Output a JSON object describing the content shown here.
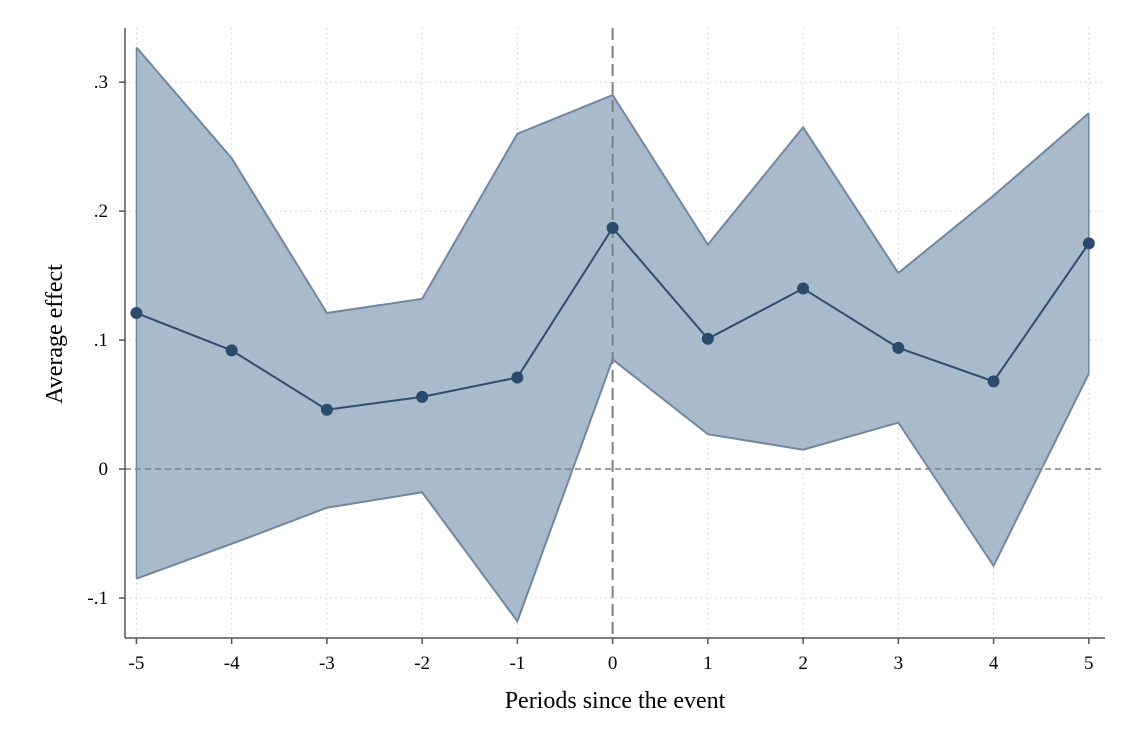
{
  "chart_data": {
    "type": "line",
    "title": "",
    "xlabel": "Periods since the event",
    "ylabel": "Average effect",
    "x": [
      -5,
      -4,
      -3,
      -2,
      -1,
      0,
      1,
      2,
      3,
      4,
      5
    ],
    "x_tick_labels": [
      "-5",
      "-4",
      "-3",
      "-2",
      "-1",
      "0",
      "1",
      "2",
      "3",
      "4",
      "5"
    ],
    "y_ticks": [
      -0.1,
      0,
      0.1,
      0.2,
      0.3
    ],
    "y_tick_labels": [
      "-.1",
      "0",
      ".1",
      ".2",
      ".3"
    ],
    "xlim": [
      -5.12,
      5.17
    ],
    "ylim": [
      -0.131,
      0.342
    ],
    "series": [
      {
        "estimate": [
          0.121,
          0.092,
          0.046,
          0.056,
          0.071,
          0.187,
          0.101,
          0.14,
          0.094,
          0.068,
          0.175
        ],
        "ci_lower": [
          -0.085,
          -0.058,
          -0.03,
          -0.018,
          -0.118,
          0.085,
          0.027,
          0.015,
          0.036,
          -0.075,
          0.074
        ],
        "ci_upper": [
          0.327,
          0.241,
          0.121,
          0.132,
          0.26,
          0.29,
          0.174,
          0.265,
          0.152,
          0.212,
          0.276
        ]
      }
    ],
    "reference_lines": {
      "horizontal_y": 0,
      "vertical_x": 0
    },
    "grid": true,
    "colors": {
      "band_fill": "#a9bacb",
      "band_edge": "#6e88a2",
      "line": "#2f4d70",
      "marker": "#2b4a6d",
      "reference": "#808080",
      "grid": "#cfcfcf",
      "axis": "#555555"
    }
  }
}
